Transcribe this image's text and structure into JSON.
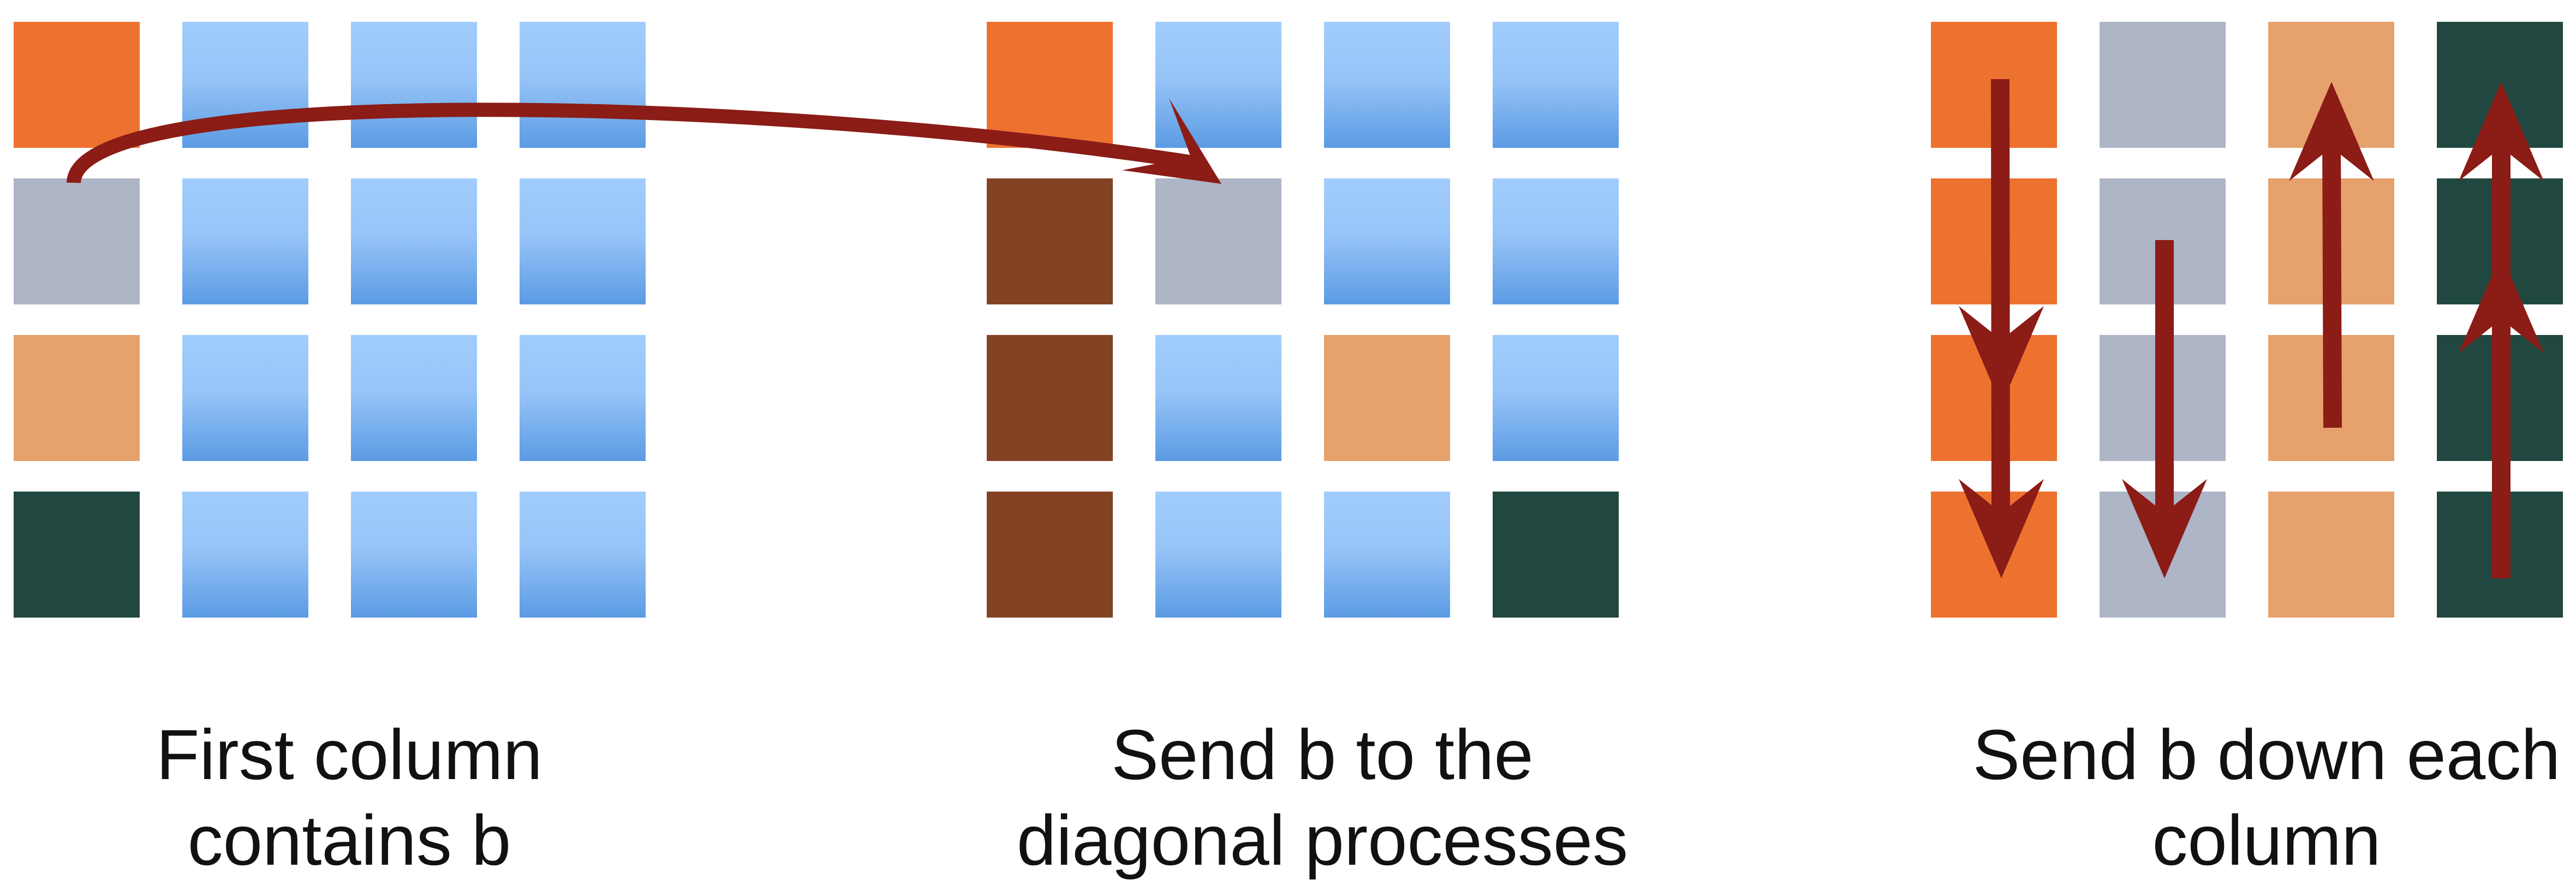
{
  "colors": {
    "orange": "#ED7230",
    "gray": "#ADB5C6",
    "peach": "#E6A16D",
    "dark_green": "#214840",
    "brown": "#834224",
    "light_blue_top": "#A1CDFD",
    "light_blue_bottom": "#5B9BE4",
    "arrow": "#8B1C16"
  },
  "panels": [
    {
      "caption": [
        "First column",
        "contains b"
      ],
      "grid": [
        [
          "orange",
          "blue",
          "blue",
          "blue"
        ],
        [
          "gray",
          "blue",
          "blue",
          "blue"
        ],
        [
          "peach",
          "blue",
          "blue",
          "blue"
        ],
        [
          "dark_green",
          "blue",
          "blue",
          "blue"
        ]
      ]
    },
    {
      "caption": [
        "Send b to the",
        "diagonal processes"
      ],
      "grid": [
        [
          "orange",
          "blue",
          "blue",
          "blue"
        ],
        [
          "brown",
          "gray",
          "blue",
          "blue"
        ],
        [
          "brown",
          "blue",
          "peach",
          "blue"
        ],
        [
          "brown",
          "blue",
          "blue",
          "dark_green"
        ]
      ]
    },
    {
      "caption": [
        "Send b down each",
        "column"
      ],
      "grid": [
        [
          "orange",
          "gray",
          "peach",
          "dark_green"
        ],
        [
          "orange",
          "gray",
          "peach",
          "dark_green"
        ],
        [
          "orange",
          "gray",
          "peach",
          "dark_green"
        ],
        [
          "orange",
          "gray",
          "peach",
          "dark_green"
        ]
      ]
    }
  ]
}
